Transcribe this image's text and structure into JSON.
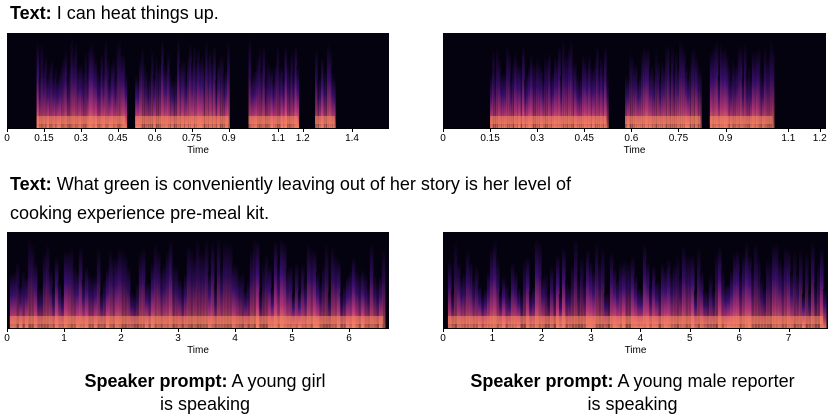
{
  "text_prefix": "Text:",
  "speaker_prefix": "Speaker prompt:",
  "sentence1": "I can heat things up.",
  "sentence2_line1": "What green is conveniently leaving out of her story is her level of",
  "sentence2_line2": "cooking experience pre-meal kit.",
  "prompt_left_line1": "A young girl",
  "prompt_left_line2": "is speaking",
  "prompt_right_line1": "A young male reporter",
  "prompt_right_line2": "is speaking",
  "colors": {
    "background": "#05020f",
    "low": "#3b0f70",
    "mid": "#b5367a",
    "high": "#fb8761",
    "peak": "#fcfdbf"
  },
  "chart_data": [
    {
      "type": "heatmap",
      "xlabel": "Time",
      "xlim": [
        0,
        1.55
      ],
      "xticks": [
        0,
        0.15,
        0.3,
        0.45,
        0.6,
        0.75,
        0.9,
        1.1,
        1.2,
        1.4
      ],
      "xtick_labels": [
        "0",
        "0.15",
        "0.3",
        "0.45",
        "0.6",
        "0.75",
        "0.9",
        "1.1",
        "1.2",
        "1.4"
      ],
      "segments": [
        [
          0.12,
          0.48
        ],
        [
          0.52,
          0.9
        ],
        [
          0.98,
          1.18
        ],
        [
          1.25,
          1.33
        ]
      ]
    },
    {
      "type": "heatmap",
      "xlabel": "Time",
      "xlim": [
        0,
        1.22
      ],
      "xticks": [
        0,
        0.15,
        0.3,
        0.45,
        0.6,
        0.75,
        0.9,
        1.1,
        1.2
      ],
      "xtick_labels": [
        "0",
        "0.15",
        "0.3",
        "0.45",
        "0.6",
        "0.75",
        "0.9",
        "1.1",
        "1.2"
      ],
      "segments": [
        [
          0.15,
          0.52
        ],
        [
          0.58,
          0.82
        ],
        [
          0.85,
          1.05
        ]
      ]
    },
    {
      "type": "heatmap",
      "xlabel": "Time",
      "xlim": [
        0,
        6.7
      ],
      "xticks": [
        0,
        1,
        2,
        3,
        4,
        5,
        6
      ],
      "xtick_labels": [
        "0",
        "1",
        "2",
        "3",
        "4",
        "5",
        "6"
      ],
      "segments": [
        [
          0.05,
          6.6
        ]
      ]
    },
    {
      "type": "heatmap",
      "xlabel": "Time",
      "xlim": [
        0,
        7.8
      ],
      "xticks": [
        0,
        1,
        2,
        3,
        4,
        5,
        6,
        7
      ],
      "xtick_labels": [
        "0",
        "1",
        "2",
        "3",
        "4",
        "5",
        "6",
        "7"
      ],
      "segments": [
        [
          0.1,
          7.7
        ]
      ]
    }
  ]
}
